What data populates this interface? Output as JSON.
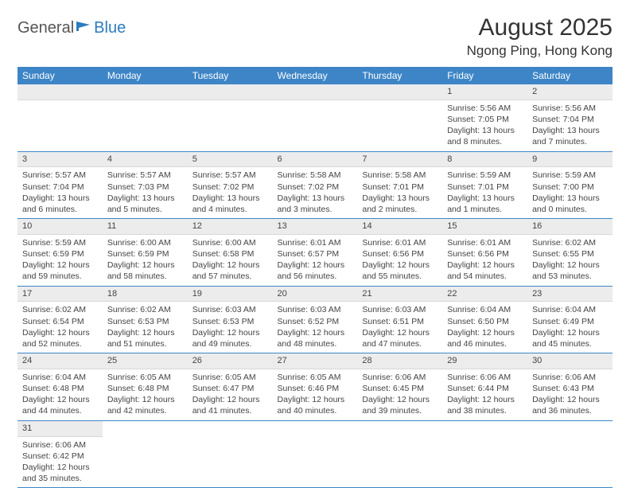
{
  "logo": {
    "text1": "General",
    "text2": "Blue"
  },
  "title": "August 2025",
  "location": "Ngong Ping, Hong Kong",
  "colors": {
    "header_bg": "#3d85c6",
    "header_text": "#ffffff",
    "daynum_bg": "#ececec",
    "rule": "#3d85c6"
  },
  "daysOfWeek": [
    "Sunday",
    "Monday",
    "Tuesday",
    "Wednesday",
    "Thursday",
    "Friday",
    "Saturday"
  ],
  "weeks": [
    [
      null,
      null,
      null,
      null,
      null,
      {
        "n": "1",
        "sunrise": "5:56 AM",
        "sunset": "7:05 PM",
        "day_h": 13,
        "day_m": 8
      },
      {
        "n": "2",
        "sunrise": "5:56 AM",
        "sunset": "7:04 PM",
        "day_h": 13,
        "day_m": 7
      }
    ],
    [
      {
        "n": "3",
        "sunrise": "5:57 AM",
        "sunset": "7:04 PM",
        "day_h": 13,
        "day_m": 6
      },
      {
        "n": "4",
        "sunrise": "5:57 AM",
        "sunset": "7:03 PM",
        "day_h": 13,
        "day_m": 5
      },
      {
        "n": "5",
        "sunrise": "5:57 AM",
        "sunset": "7:02 PM",
        "day_h": 13,
        "day_m": 4
      },
      {
        "n": "6",
        "sunrise": "5:58 AM",
        "sunset": "7:02 PM",
        "day_h": 13,
        "day_m": 3
      },
      {
        "n": "7",
        "sunrise": "5:58 AM",
        "sunset": "7:01 PM",
        "day_h": 13,
        "day_m": 2
      },
      {
        "n": "8",
        "sunrise": "5:59 AM",
        "sunset": "7:01 PM",
        "day_h": 13,
        "day_m": 1
      },
      {
        "n": "9",
        "sunrise": "5:59 AM",
        "sunset": "7:00 PM",
        "day_h": 13,
        "day_m": 0
      }
    ],
    [
      {
        "n": "10",
        "sunrise": "5:59 AM",
        "sunset": "6:59 PM",
        "day_h": 12,
        "day_m": 59
      },
      {
        "n": "11",
        "sunrise": "6:00 AM",
        "sunset": "6:59 PM",
        "day_h": 12,
        "day_m": 58
      },
      {
        "n": "12",
        "sunrise": "6:00 AM",
        "sunset": "6:58 PM",
        "day_h": 12,
        "day_m": 57
      },
      {
        "n": "13",
        "sunrise": "6:01 AM",
        "sunset": "6:57 PM",
        "day_h": 12,
        "day_m": 56
      },
      {
        "n": "14",
        "sunrise": "6:01 AM",
        "sunset": "6:56 PM",
        "day_h": 12,
        "day_m": 55
      },
      {
        "n": "15",
        "sunrise": "6:01 AM",
        "sunset": "6:56 PM",
        "day_h": 12,
        "day_m": 54
      },
      {
        "n": "16",
        "sunrise": "6:02 AM",
        "sunset": "6:55 PM",
        "day_h": 12,
        "day_m": 53
      }
    ],
    [
      {
        "n": "17",
        "sunrise": "6:02 AM",
        "sunset": "6:54 PM",
        "day_h": 12,
        "day_m": 52
      },
      {
        "n": "18",
        "sunrise": "6:02 AM",
        "sunset": "6:53 PM",
        "day_h": 12,
        "day_m": 51
      },
      {
        "n": "19",
        "sunrise": "6:03 AM",
        "sunset": "6:53 PM",
        "day_h": 12,
        "day_m": 49
      },
      {
        "n": "20",
        "sunrise": "6:03 AM",
        "sunset": "6:52 PM",
        "day_h": 12,
        "day_m": 48
      },
      {
        "n": "21",
        "sunrise": "6:03 AM",
        "sunset": "6:51 PM",
        "day_h": 12,
        "day_m": 47
      },
      {
        "n": "22",
        "sunrise": "6:04 AM",
        "sunset": "6:50 PM",
        "day_h": 12,
        "day_m": 46
      },
      {
        "n": "23",
        "sunrise": "6:04 AM",
        "sunset": "6:49 PM",
        "day_h": 12,
        "day_m": 45
      }
    ],
    [
      {
        "n": "24",
        "sunrise": "6:04 AM",
        "sunset": "6:48 PM",
        "day_h": 12,
        "day_m": 44
      },
      {
        "n": "25",
        "sunrise": "6:05 AM",
        "sunset": "6:48 PM",
        "day_h": 12,
        "day_m": 42
      },
      {
        "n": "26",
        "sunrise": "6:05 AM",
        "sunset": "6:47 PM",
        "day_h": 12,
        "day_m": 41
      },
      {
        "n": "27",
        "sunrise": "6:05 AM",
        "sunset": "6:46 PM",
        "day_h": 12,
        "day_m": 40
      },
      {
        "n": "28",
        "sunrise": "6:06 AM",
        "sunset": "6:45 PM",
        "day_h": 12,
        "day_m": 39
      },
      {
        "n": "29",
        "sunrise": "6:06 AM",
        "sunset": "6:44 PM",
        "day_h": 12,
        "day_m": 38
      },
      {
        "n": "30",
        "sunrise": "6:06 AM",
        "sunset": "6:43 PM",
        "day_h": 12,
        "day_m": 36
      }
    ],
    [
      {
        "n": "31",
        "sunrise": "6:06 AM",
        "sunset": "6:42 PM",
        "day_h": 12,
        "day_m": 35
      },
      null,
      null,
      null,
      null,
      null,
      null
    ]
  ],
  "labels": {
    "sunrise": "Sunrise:",
    "sunset": "Sunset:",
    "daylight": "Daylight:",
    "hours": "hours",
    "and": "and",
    "minutes": "minutes."
  }
}
